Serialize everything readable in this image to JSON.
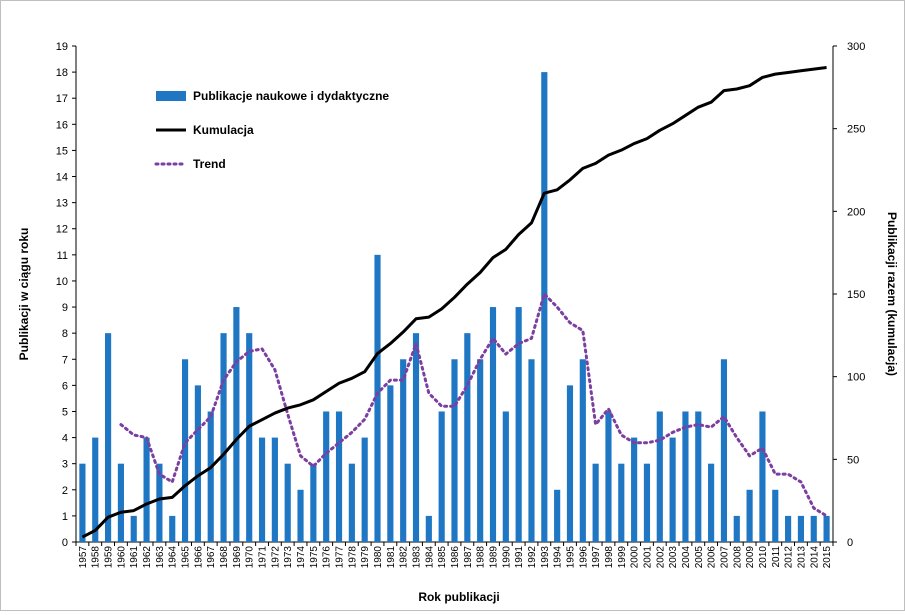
{
  "chart_data": {
    "type": "bar",
    "title": "",
    "xlabel": "Rok publikacji",
    "ylabel": "Publikacji w ciągu roku",
    "y2label": "Publikacji razem (kumulacja)",
    "ylim": [
      0,
      19
    ],
    "y2lim": [
      0,
      300
    ],
    "yticks": [
      0,
      1,
      2,
      3,
      4,
      5,
      6,
      7,
      8,
      9,
      10,
      11,
      12,
      13,
      14,
      15,
      16,
      17,
      18,
      19
    ],
    "y2ticks": [
      0,
      50,
      100,
      150,
      200,
      250,
      300
    ],
    "grid": false,
    "legend_position": "top-left",
    "categories": [
      "1957",
      "1958",
      "1959",
      "1960",
      "1961",
      "1962",
      "1963",
      "1964",
      "1965",
      "1966",
      "1967",
      "1968",
      "1969",
      "1970",
      "1971",
      "1972",
      "1973",
      "1974",
      "1975",
      "1976",
      "1977",
      "1978",
      "1979",
      "1980",
      "1981",
      "1982",
      "1983",
      "1984",
      "1985",
      "1986",
      "1987",
      "1988",
      "1989",
      "1990",
      "1991",
      "1992",
      "1993",
      "1994",
      "1995",
      "1996",
      "1997",
      "1998",
      "1999",
      "2000",
      "2001",
      "2002",
      "2003",
      "2004",
      "2005",
      "2006",
      "2007",
      "2008",
      "2009",
      "2010",
      "2011",
      "2012",
      "2013",
      "2014",
      "2015"
    ],
    "series": [
      {
        "name": "Publikacje naukowe i dydaktyczne",
        "type": "bar",
        "axis": "left",
        "color": "#1f77c4",
        "values": [
          3,
          4,
          8,
          3,
          1,
          4,
          3,
          1,
          7,
          6,
          5,
          8,
          9,
          8,
          4,
          4,
          3,
          2,
          3,
          5,
          5,
          3,
          4,
          11,
          6,
          7,
          8,
          1,
          5,
          7,
          8,
          7,
          9,
          5,
          9,
          7,
          18,
          2,
          6,
          7,
          3,
          5,
          3,
          4,
          3,
          5,
          4,
          5,
          5,
          3,
          7,
          1,
          2,
          5,
          2,
          1,
          1,
          1,
          1
        ]
      },
      {
        "name": "Kumulacja",
        "type": "line",
        "axis": "right",
        "color": "#000000",
        "values": [
          3,
          7,
          15,
          18,
          19,
          23,
          26,
          27,
          34,
          40,
          45,
          53,
          62,
          70,
          74,
          78,
          81,
          83,
          86,
          91,
          96,
          99,
          103,
          114,
          120,
          127,
          135,
          136,
          141,
          148,
          156,
          163,
          172,
          177,
          186,
          193,
          211,
          213,
          219,
          226,
          229,
          234,
          237,
          241,
          244,
          249,
          253,
          258,
          263,
          266,
          273,
          274,
          276,
          281,
          283,
          284,
          285,
          286,
          287
        ]
      },
      {
        "name": "Trend",
        "type": "line",
        "axis": "left",
        "style": "dotted",
        "color": "#7b3fa0",
        "values": [
          null,
          null,
          null,
          4.5,
          4.1,
          4.0,
          2.6,
          2.3,
          3.8,
          4.3,
          4.8,
          6.2,
          6.9,
          7.3,
          7.4,
          6.6,
          4.9,
          3.3,
          2.9,
          3.4,
          3.8,
          4.2,
          4.7,
          5.7,
          6.2,
          6.2,
          7.6,
          5.7,
          5.2,
          5.2,
          6.0,
          7.0,
          7.8,
          7.2,
          7.6,
          7.8,
          9.5,
          9.0,
          8.4,
          8.1,
          4.5,
          5.1,
          4.1,
          3.8,
          3.8,
          3.9,
          4.2,
          4.4,
          4.5,
          4.4,
          4.8,
          4.0,
          3.3,
          3.6,
          2.6,
          2.6,
          2.3,
          1.3,
          1.0
        ]
      }
    ]
  }
}
